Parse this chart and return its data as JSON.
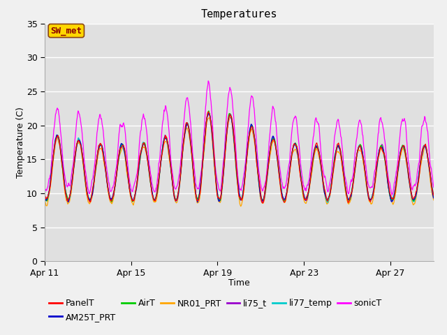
{
  "title": "Temperatures",
  "xlabel": "Time",
  "ylabel": "Temperature (C)",
  "ylim": [
    0,
    35
  ],
  "yticks": [
    0,
    5,
    10,
    15,
    20,
    25,
    30,
    35
  ],
  "xtick_positions": [
    0,
    4,
    8,
    12,
    16
  ],
  "xtick_labels": [
    "Apr 11",
    "Apr 15",
    "Apr 19",
    "Apr 23",
    "Apr 27"
  ],
  "annotation_text": "SW_met",
  "annotation_box_color": "#FFD700",
  "annotation_text_color": "#8B0000",
  "annotation_box_edge_color": "#8B4513",
  "series_colors": {
    "PanelT": "#FF0000",
    "AM25T_PRT": "#0000CC",
    "AirT": "#00CC00",
    "NR01_PRT": "#FFA500",
    "li75_t": "#9900CC",
    "li77_temp": "#00CCCC",
    "sonicT": "#FF00FF"
  },
  "fig_facecolor": "#F0F0F0",
  "plot_facecolor": "#E0E0E0",
  "grid_color": "#FFFFFF",
  "title_fontsize": 11,
  "label_fontsize": 9,
  "tick_fontsize": 9,
  "legend_fontsize": 9
}
